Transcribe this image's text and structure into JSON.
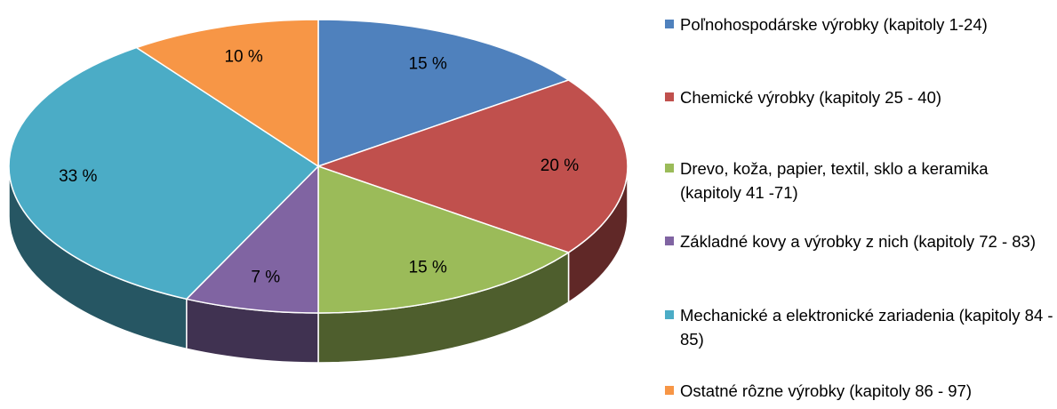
{
  "chart_data": {
    "type": "pie3d",
    "categories": [
      "Poľnohospodárske výrobky (kapitoly 1-24)",
      "Chemické výrobky (kapitoly 25 - 40)",
      "Drevo, koža, papier, textil, sklo a keramika (kapitoly 41 -71)",
      "Základné kovy a výrobky z nich (kapitoly 72 - 83)",
      "Mechanické a elektronické zariadenia (kapitoly 84 - 85)",
      "Ostatné rôzne výrobky (kapitoly 86 - 97)"
    ],
    "values": [
      15,
      20,
      15,
      7,
      33,
      10
    ],
    "value_labels": [
      "15 %",
      "20 %",
      "15 %",
      "7 %",
      "33 %",
      "10 %"
    ],
    "colors": [
      "#4f81bd",
      "#c0504d",
      "#9bbb59",
      "#8064a2",
      "#4bacc6",
      "#f79646"
    ],
    "legend": "right"
  }
}
